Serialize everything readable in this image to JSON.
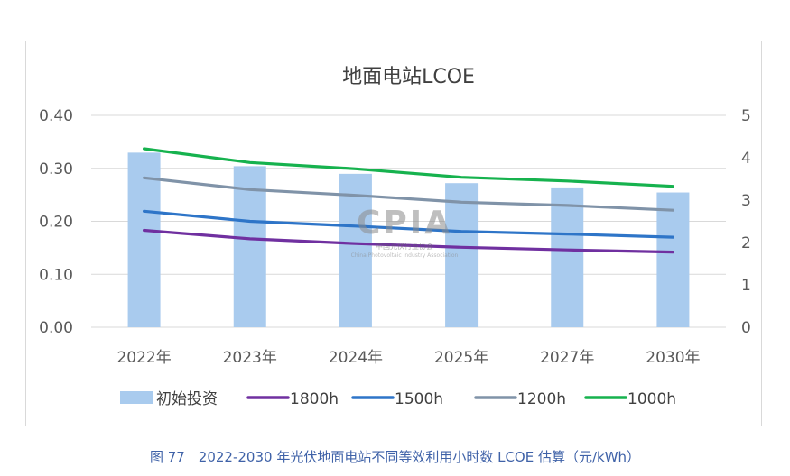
{
  "chart_data": {
    "type": "bar",
    "title": "地面电站LCOE",
    "categories": [
      "2022年",
      "2023年",
      "2024年",
      "2025年",
      "2027年",
      "2030年"
    ],
    "y_left": {
      "ticks": [
        "0.00",
        "0.10",
        "0.20",
        "0.30",
        "0.40"
      ],
      "ylim": [
        0,
        0.4
      ]
    },
    "y_right": {
      "ticks": [
        "0",
        "1",
        "2",
        "3",
        "4",
        "5"
      ],
      "ylim": [
        0,
        5
      ]
    },
    "bar_series": {
      "name": "初始投资",
      "axis": "right",
      "values": [
        4.12,
        3.8,
        3.62,
        3.4,
        3.3,
        3.18
      ],
      "color": "#a9cbee"
    },
    "line_series": [
      {
        "name": "1800h",
        "axis": "left",
        "values": [
          0.183,
          0.167,
          0.158,
          0.151,
          0.146,
          0.142
        ],
        "color": "#7030a0"
      },
      {
        "name": "1500h",
        "axis": "left",
        "values": [
          0.219,
          0.2,
          0.191,
          0.181,
          0.176,
          0.17
        ],
        "color": "#2e75c8"
      },
      {
        "name": "1200h",
        "axis": "left",
        "values": [
          0.282,
          0.26,
          0.249,
          0.236,
          0.23,
          0.221
        ],
        "color": "#8093a8"
      },
      {
        "name": "1000h",
        "axis": "left",
        "values": [
          0.337,
          0.311,
          0.299,
          0.283,
          0.276,
          0.266
        ],
        "color": "#16b24e"
      }
    ],
    "legend_position": "bottom",
    "grid": true
  },
  "watermark": {
    "logo": "CPIA",
    "org_cn": "中国光伏行业协会",
    "org_en": "China Photovoltaic Industry Association"
  },
  "caption": "图 77　2022-2030 年光伏地面电站不同等效利用小时数 LCOE 估算（元/kWh）"
}
